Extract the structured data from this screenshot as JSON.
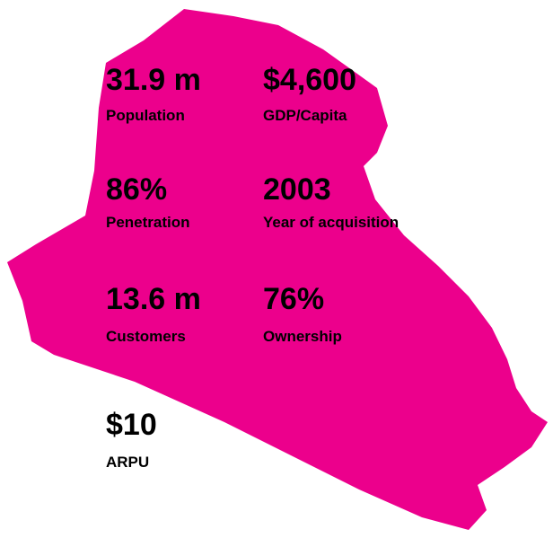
{
  "stats": [
    {
      "value": "31.9 m",
      "label": "Population"
    },
    {
      "value": "$4,600",
      "label": "GDP/Capita"
    },
    {
      "value": "86%",
      "label": "Penetration"
    },
    {
      "value": "2003",
      "label": "Year of acquisition"
    },
    {
      "value": "13.6 m",
      "label": "Customers"
    },
    {
      "value": "76%",
      "label": "Ownership"
    },
    {
      "value": "$10",
      "label": "ARPU"
    }
  ]
}
